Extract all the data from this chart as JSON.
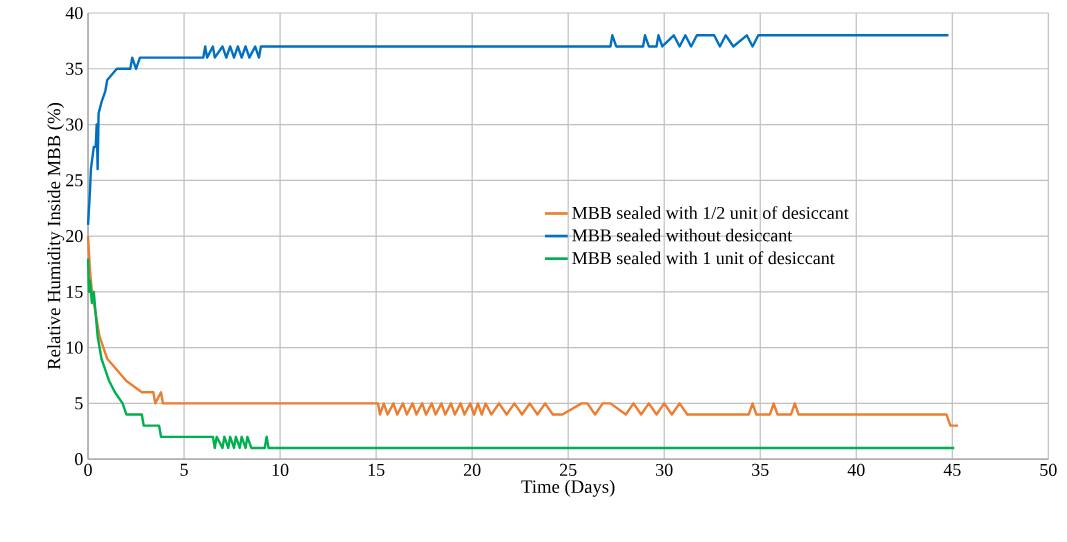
{
  "chart_data": {
    "type": "line",
    "xlabel": "Time (Days)",
    "ylabel": "Relative Humidity Inside MBB (%)",
    "xlim": [
      0,
      50
    ],
    "xticks": [
      0,
      5,
      10,
      15,
      20,
      25,
      30,
      35,
      40,
      45,
      50
    ],
    "ylim": [
      0,
      40
    ],
    "yticks": [
      0,
      5,
      10,
      15,
      20,
      25,
      30,
      35,
      40
    ],
    "grid": true,
    "legend": "right",
    "marker": "none",
    "line_style": "solid",
    "series": [
      {
        "name": "MBB sealed with 1/2 unit of desiccant",
        "color": "#ed7d31",
        "x": [
          0,
          0.1,
          0.2,
          0.4,
          0.6,
          0.8,
          1.0,
          1.5,
          2.0,
          2.8,
          3.4,
          3.5,
          3.8,
          3.9,
          4.0,
          15.1,
          15.2,
          15.4,
          15.6,
          15.9,
          16.1,
          16.4,
          16.6,
          16.9,
          17.1,
          17.4,
          17.6,
          17.9,
          18.1,
          18.4,
          18.6,
          18.9,
          19.1,
          19.4,
          19.6,
          19.9,
          20.1,
          20.3,
          20.5,
          20.7,
          21.0,
          21.4,
          21.8,
          22.2,
          22.6,
          23.0,
          23.4,
          23.8,
          24.2,
          24.7,
          25.7,
          26.0,
          26.4,
          26.8,
          27.2,
          28.0,
          28.4,
          28.8,
          29.2,
          29.6,
          30.0,
          30.4,
          30.8,
          31.2,
          34.4,
          34.6,
          34.8,
          35.5,
          35.7,
          35.9,
          36.6,
          36.8,
          37.0,
          44.7,
          44.9,
          45.3
        ],
        "values": [
          20,
          17,
          15,
          13,
          11,
          10,
          9,
          8,
          7,
          6,
          6,
          5,
          6,
          5,
          5,
          5,
          4,
          5,
          4,
          5,
          4,
          5,
          4,
          5,
          4,
          5,
          4,
          5,
          4,
          5,
          4,
          5,
          4,
          5,
          4,
          5,
          4,
          5,
          4,
          5,
          4,
          5,
          4,
          5,
          4,
          5,
          4,
          5,
          4,
          4,
          5,
          5,
          4,
          5,
          5,
          4,
          5,
          4,
          5,
          4,
          5,
          4,
          5,
          4,
          4,
          5,
          4,
          4,
          5,
          4,
          4,
          5,
          4,
          4,
          3,
          3
        ]
      },
      {
        "name": "MBB sealed without desiccant",
        "color": "#0070c0",
        "x": [
          0,
          0.1,
          0.15,
          0.3,
          0.4,
          0.45,
          0.5,
          0.55,
          0.7,
          0.9,
          1.0,
          1.5,
          2.2,
          2.3,
          2.5,
          2.7,
          6.0,
          6.1,
          6.2,
          6.5,
          6.6,
          7.0,
          7.2,
          7.4,
          7.6,
          7.8,
          8.0,
          8.2,
          8.4,
          8.7,
          8.9,
          9.0,
          27.2,
          27.3,
          27.5,
          28.9,
          29.0,
          29.2,
          29.6,
          29.7,
          29.9,
          30.5,
          30.8,
          31.1,
          31.4,
          31.7,
          32.6,
          32.9,
          33.2,
          33.6,
          34.3,
          34.6,
          34.9,
          44.8
        ],
        "values": [
          21,
          24,
          26,
          28,
          28,
          30,
          26,
          31,
          32,
          33,
          34,
          35,
          35,
          36,
          35,
          36,
          36,
          37,
          36,
          37,
          36,
          37,
          36,
          37,
          36,
          37,
          36,
          37,
          36,
          37,
          36,
          37,
          37,
          38,
          37,
          37,
          38,
          37,
          37,
          38,
          37,
          38,
          37,
          38,
          37,
          38,
          38,
          37,
          38,
          37,
          38,
          37,
          38,
          38
        ]
      },
      {
        "name": "MBB sealed with 1 unit of desiccant",
        "color": "#00b050",
        "x": [
          0,
          0.05,
          0.1,
          0.2,
          0.3,
          0.4,
          0.5,
          0.7,
          0.9,
          1.1,
          1.4,
          1.8,
          2.0,
          2.8,
          2.9,
          3.7,
          3.8,
          6.5,
          6.6,
          6.7,
          7.0,
          7.1,
          7.3,
          7.4,
          7.6,
          7.7,
          7.9,
          8.0,
          8.2,
          8.3,
          8.5,
          9.2,
          9.3,
          9.4,
          45.1
        ],
        "values": [
          18,
          15,
          16,
          14,
          15,
          13,
          11,
          9,
          8,
          7,
          6,
          5,
          4,
          4,
          3,
          3,
          2,
          2,
          1,
          2,
          1,
          2,
          1,
          2,
          1,
          2,
          1,
          2,
          1,
          2,
          1,
          1,
          2,
          1,
          1
        ]
      }
    ]
  }
}
